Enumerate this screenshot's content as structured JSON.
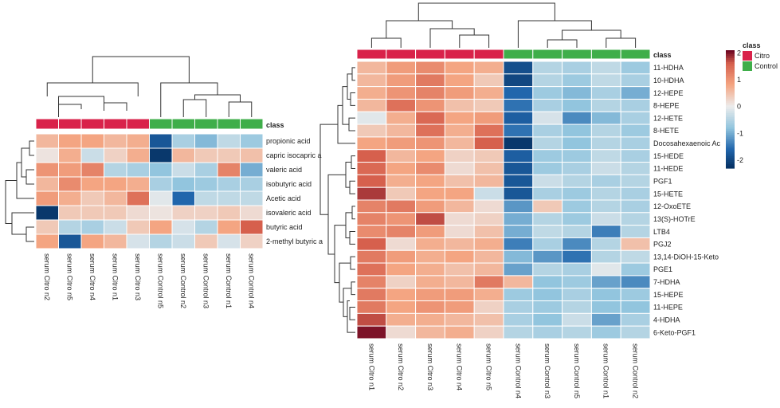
{
  "chart_data": [
    {
      "type": "heatmap",
      "title": "",
      "class_label": "class",
      "columns": [
        "serum Citro n2",
        "serum Citro n5",
        "serum Citro n4",
        "serum Citro n1",
        "serum Citro n3",
        "serum Control n5",
        "serum Control n2",
        "serum Control n3",
        "serum Control n1",
        "serum Control n4"
      ],
      "column_classes": [
        "Citro",
        "Citro",
        "Citro",
        "Citro",
        "Citro",
        "Control",
        "Control",
        "Control",
        "Control",
        "Control"
      ],
      "rows": [
        "propionic acid",
        "capric isocapric a",
        "valeric acid",
        "isobutyric acid",
        "Acetic acid",
        "isovaleric acid",
        "butyric acid",
        "2-methyl butyric a"
      ],
      "values": [
        [
          0.6,
          0.8,
          0.8,
          0.6,
          0.7,
          -1.8,
          -0.6,
          -0.9,
          -0.4,
          -0.7
        ],
        [
          0.1,
          0.7,
          -0.3,
          0.3,
          0.7,
          -2.2,
          0.6,
          0.4,
          0.4,
          0.5
        ],
        [
          1.0,
          0.9,
          1.2,
          -0.5,
          -0.6,
          -0.8,
          -0.3,
          -0.6,
          1.2,
          -1.0
        ],
        [
          0.6,
          1.1,
          0.8,
          0.8,
          0.7,
          -0.6,
          -0.8,
          -0.7,
          -0.6,
          -0.6
        ],
        [
          0.9,
          0.7,
          0.4,
          0.6,
          1.4,
          -0.1,
          -1.6,
          -0.4,
          -0.4,
          -0.4
        ],
        [
          -2.2,
          0.4,
          0.4,
          0.4,
          0.2,
          0.1,
          0.3,
          0.3,
          0.4,
          0.2
        ],
        [
          0.4,
          -0.5,
          -0.6,
          -0.3,
          0.4,
          0.8,
          -0.2,
          -0.5,
          0.8,
          1.6
        ],
        [
          0.8,
          -1.8,
          0.8,
          0.6,
          -0.2,
          -0.5,
          -0.3,
          0.4,
          -0.2,
          0.3
        ]
      ]
    },
    {
      "type": "heatmap",
      "title": "",
      "class_label": "class",
      "columns": [
        "serum Citro n1",
        "serum Citro n2",
        "serum Citro n3",
        "serum Citro n4",
        "serum Citro n5",
        "serum Control n4",
        "serum Control n3",
        "serum Control n5",
        "serum Control n1",
        "serum Control n2"
      ],
      "column_classes": [
        "Citro",
        "Citro",
        "Citro",
        "Citro",
        "Citro",
        "Control",
        "Control",
        "Control",
        "Control",
        "Control"
      ],
      "rows": [
        "11-HDHA",
        "10-HDHA",
        "12-HEPE",
        "8-HEPE",
        "12-HETE",
        "8-HETE",
        "Docosahexaenoic Ac",
        "15-HEDE",
        "11-HEDE",
        "PGF1",
        "15-HETE",
        "12-OxoETE",
        "13(S)-HOTrE",
        "LTB4",
        "PGJ2",
        "13,14-DiOH-15-Keto",
        "PGE1",
        "7-HDHA",
        "15-HEPE",
        "11-HEPE",
        "4-HDHA",
        "6-Keto-PGF1"
      ],
      "values": [
        [
          0.6,
          0.9,
          1.1,
          0.8,
          0.7,
          -1.9,
          -0.5,
          -0.6,
          -0.4,
          -0.7
        ],
        [
          0.6,
          0.9,
          1.3,
          0.8,
          0.4,
          -2.0,
          -0.5,
          -0.7,
          -0.4,
          -0.6
        ],
        [
          0.7,
          1.0,
          1.2,
          0.9,
          0.7,
          -1.6,
          -0.7,
          -0.9,
          -0.6,
          -1.0
        ],
        [
          0.6,
          1.4,
          1.0,
          0.5,
          0.4,
          -1.5,
          -0.6,
          -0.8,
          -0.5,
          -0.6
        ],
        [
          -0.1,
          0.7,
          1.5,
          0.8,
          0.9,
          -1.7,
          -0.2,
          -1.3,
          -0.9,
          -0.6
        ],
        [
          0.4,
          0.6,
          1.4,
          0.7,
          1.4,
          -1.5,
          -0.6,
          -0.8,
          -0.5,
          -0.7
        ],
        [
          0.8,
          0.9,
          1.0,
          0.6,
          1.6,
          -2.2,
          -0.5,
          -0.8,
          -0.5,
          -0.6
        ],
        [
          1.6,
          0.6,
          0.8,
          0.3,
          0.4,
          -1.7,
          -0.7,
          -0.7,
          -0.4,
          -0.6
        ],
        [
          1.5,
          0.8,
          1.1,
          0.2,
          0.5,
          -1.8,
          -0.7,
          -0.6,
          -0.3,
          -0.5
        ],
        [
          1.6,
          0.7,
          0.8,
          0.5,
          0.6,
          -1.8,
          -0.3,
          -0.5,
          -0.6,
          -0.5
        ],
        [
          1.8,
          0.4,
          0.8,
          0.8,
          -0.3,
          -1.8,
          -0.6,
          -0.7,
          -0.5,
          -0.6
        ],
        [
          1.2,
          1.3,
          0.9,
          0.6,
          0.2,
          -1.2,
          0.4,
          -0.7,
          -0.5,
          -0.6
        ],
        [
          1.2,
          1.0,
          1.7,
          0.2,
          0.3,
          -1.0,
          -0.5,
          -0.7,
          -0.3,
          -0.5
        ],
        [
          1.1,
          1.2,
          0.9,
          0.2,
          0.5,
          -1.0,
          -0.4,
          -0.5,
          -1.4,
          -0.5
        ],
        [
          1.6,
          0.2,
          0.7,
          0.6,
          0.7,
          -1.4,
          -0.6,
          -1.3,
          -0.5,
          0.5
        ],
        [
          1.3,
          0.9,
          0.7,
          0.8,
          0.6,
          -0.9,
          -1.2,
          -1.5,
          -0.5,
          -0.4
        ],
        [
          1.4,
          0.8,
          0.7,
          0.5,
          0.6,
          -1.1,
          -0.5,
          -0.6,
          -0.1,
          -0.7
        ],
        [
          1.2,
          0.3,
          0.7,
          0.6,
          1.3,
          0.6,
          -0.8,
          -0.7,
          -1.1,
          -1.3
        ],
        [
          1.3,
          0.8,
          0.9,
          0.9,
          0.7,
          -0.7,
          -0.8,
          -0.6,
          -0.8,
          -0.7
        ],
        [
          1.3,
          0.8,
          1.0,
          0.9,
          0.3,
          -0.6,
          -0.7,
          -0.5,
          -0.8,
          -0.8
        ],
        [
          1.7,
          0.7,
          0.7,
          0.6,
          0.5,
          -0.6,
          -0.8,
          -0.3,
          -1.1,
          -0.6
        ],
        [
          2.0,
          0.2,
          0.6,
          0.7,
          0.3,
          -0.5,
          -0.6,
          -0.5,
          -0.7,
          -0.5
        ]
      ],
      "colorbar": {
        "ticks": [
          2,
          1,
          0,
          -1,
          -2
        ],
        "range": [
          -2.3,
          2.1
        ]
      },
      "legend": {
        "title": "class",
        "entries": [
          "Citro",
          "Control"
        ],
        "position": "right"
      }
    }
  ],
  "colors": {
    "citro": "#d9224a",
    "control": "#3fae4a",
    "dendrogram": "#333333",
    "grid": "#ffffff"
  }
}
